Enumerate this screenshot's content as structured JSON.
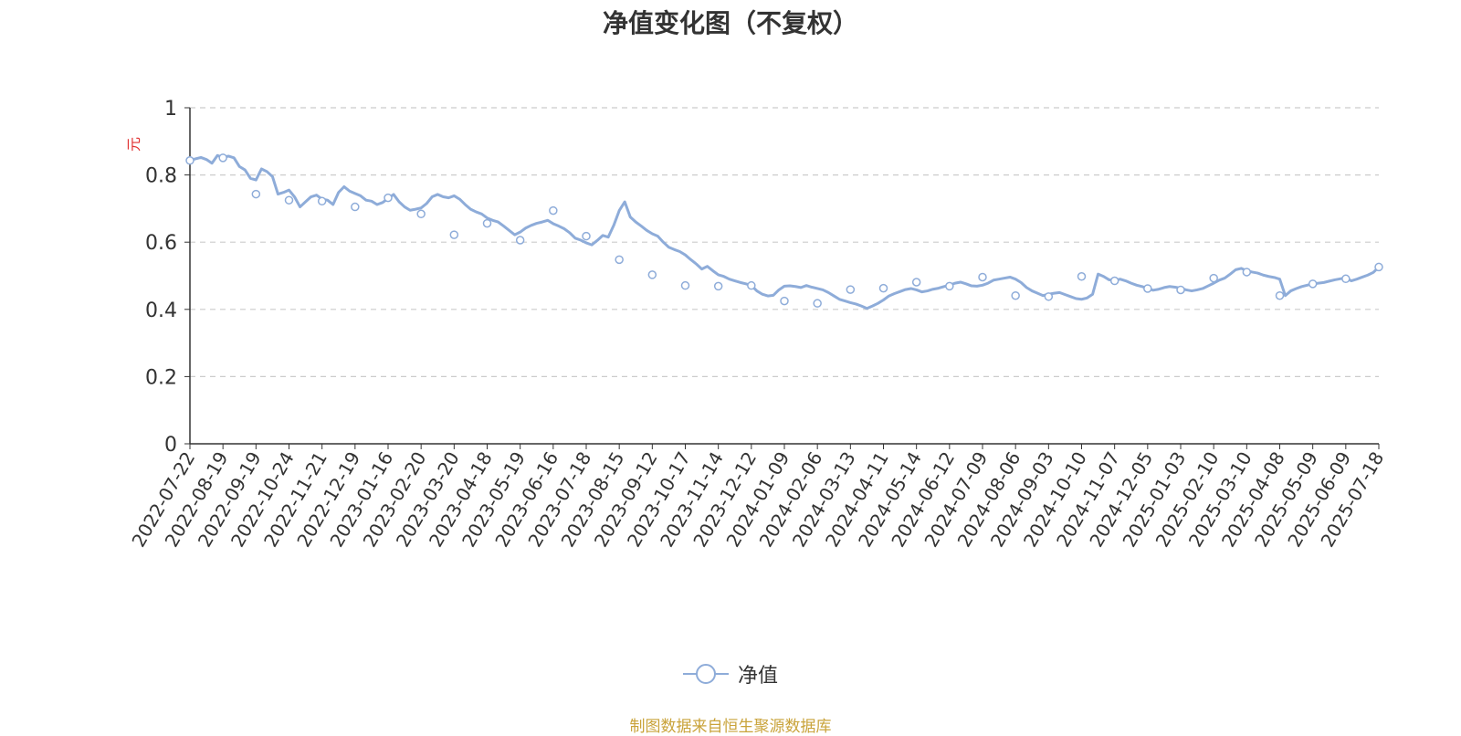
{
  "chart_data": {
    "type": "line",
    "title": "净值变化图（不复权）",
    "ylabel": "元",
    "xlabel": "",
    "ylim": [
      0,
      1
    ],
    "yticks": [
      "0",
      "0.2",
      "0.4",
      "0.6",
      "0.8",
      "1"
    ],
    "grid": true,
    "legend_position": "bottom-center",
    "x_dates": [
      "2022-07-22",
      "2022-08-19",
      "2022-09-19",
      "2022-10-24",
      "2022-11-21",
      "2022-12-19",
      "2023-01-16",
      "2023-02-20",
      "2023-03-20",
      "2023-04-18",
      "2023-05-19",
      "2023-06-16",
      "2023-07-18",
      "2023-08-15",
      "2023-09-12",
      "2023-10-17",
      "2023-11-14",
      "2023-12-12",
      "2024-01-09",
      "2024-02-06",
      "2024-03-13",
      "2024-04-11",
      "2024-05-14",
      "2024-06-12",
      "2024-07-09",
      "2024-08-06",
      "2024-09-03",
      "2024-10-10",
      "2024-11-07",
      "2024-12-05",
      "2025-01-03",
      "2025-02-10",
      "2025-03-10",
      "2025-04-08",
      "2025-05-09",
      "2025-06-09",
      "2025-07-18"
    ],
    "series": [
      {
        "name": "净值",
        "color": "#8eacd9",
        "values": [
          0.843,
          0.851,
          0.743,
          0.725,
          0.722,
          0.705,
          0.732,
          0.684,
          0.622,
          0.656,
          0.606,
          0.694,
          0.618,
          0.548,
          0.503,
          0.471,
          0.469,
          0.471,
          0.425,
          0.418,
          0.459,
          0.463,
          0.481,
          0.469,
          0.496,
          0.441,
          0.438,
          0.498,
          0.485,
          0.462,
          0.458,
          0.493,
          0.511,
          0.441,
          0.476,
          0.491,
          0.526
        ],
        "detail": [
          0.843,
          0.848,
          0.852,
          0.846,
          0.835,
          0.858,
          0.852,
          0.856,
          0.851,
          0.825,
          0.815,
          0.79,
          0.785,
          0.818,
          0.81,
          0.795,
          0.743,
          0.748,
          0.755,
          0.735,
          0.705,
          0.72,
          0.735,
          0.74,
          0.728,
          0.725,
          0.712,
          0.748,
          0.765,
          0.752,
          0.745,
          0.738,
          0.725,
          0.722,
          0.712,
          0.718,
          0.73,
          0.742,
          0.72,
          0.705,
          0.695,
          0.698,
          0.702,
          0.715,
          0.735,
          0.742,
          0.735,
          0.732,
          0.738,
          0.728,
          0.712,
          0.698,
          0.69,
          0.684,
          0.672,
          0.665,
          0.66,
          0.648,
          0.635,
          0.622,
          0.63,
          0.642,
          0.65,
          0.656,
          0.66,
          0.665,
          0.655,
          0.648,
          0.64,
          0.628,
          0.612,
          0.606,
          0.598,
          0.592,
          0.605,
          0.62,
          0.615,
          0.65,
          0.694,
          0.72,
          0.675,
          0.66,
          0.648,
          0.635,
          0.625,
          0.618,
          0.6,
          0.585,
          0.578,
          0.572,
          0.562,
          0.548,
          0.535,
          0.52,
          0.528,
          0.515,
          0.503,
          0.498,
          0.49,
          0.485,
          0.48,
          0.476,
          0.471,
          0.455,
          0.445,
          0.44,
          0.442,
          0.458,
          0.469,
          0.47,
          0.468,
          0.465,
          0.471,
          0.466,
          0.462,
          0.458,
          0.45,
          0.44,
          0.43,
          0.425,
          0.42,
          0.416,
          0.41,
          0.403,
          0.41,
          0.418,
          0.428,
          0.44,
          0.447,
          0.453,
          0.459,
          0.462,
          0.458,
          0.452,
          0.455,
          0.46,
          0.463,
          0.468,
          0.472,
          0.478,
          0.481,
          0.476,
          0.47,
          0.469,
          0.472,
          0.478,
          0.487,
          0.49,
          0.493,
          0.496,
          0.49,
          0.48,
          0.465,
          0.455,
          0.448,
          0.441,
          0.445,
          0.448,
          0.45,
          0.444,
          0.438,
          0.432,
          0.43,
          0.434,
          0.445,
          0.505,
          0.498,
          0.488,
          0.486,
          0.49,
          0.485,
          0.478,
          0.472,
          0.468,
          0.462,
          0.457,
          0.46,
          0.465,
          0.468,
          0.466,
          0.463,
          0.458,
          0.455,
          0.458,
          0.462,
          0.47,
          0.478,
          0.487,
          0.493,
          0.505,
          0.518,
          0.522,
          0.515,
          0.511,
          0.508,
          0.502,
          0.498,
          0.495,
          0.49,
          0.441,
          0.455,
          0.462,
          0.468,
          0.472,
          0.476,
          0.478,
          0.48,
          0.484,
          0.488,
          0.491,
          0.494,
          0.485,
          0.49,
          0.496,
          0.502,
          0.51,
          0.526
        ]
      }
    ]
  },
  "legend": {
    "label": "净值",
    "marker_icon": "hollow-circle-line-icon"
  },
  "source_note": "制图数据来自恒生聚源数据库"
}
